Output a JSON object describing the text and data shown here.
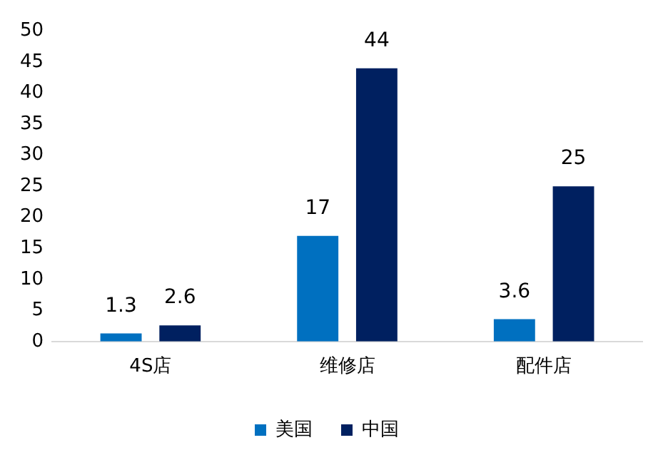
{
  "chart_data": {
    "type": "bar",
    "categories": [
      "4S店",
      "维修店",
      "配件店"
    ],
    "series": [
      {
        "name": "美国",
        "color": "#0070c0",
        "values": [
          1.3,
          17,
          3.6
        ]
      },
      {
        "name": "中国",
        "color": "#002060",
        "values": [
          2.6,
          44,
          25
        ]
      }
    ],
    "ylim": [
      0,
      50
    ],
    "yticks": [
      0,
      5,
      10,
      15,
      20,
      25,
      30,
      35,
      40,
      45,
      50
    ],
    "grid": false,
    "legend": "bottom",
    "data_labels": true
  }
}
